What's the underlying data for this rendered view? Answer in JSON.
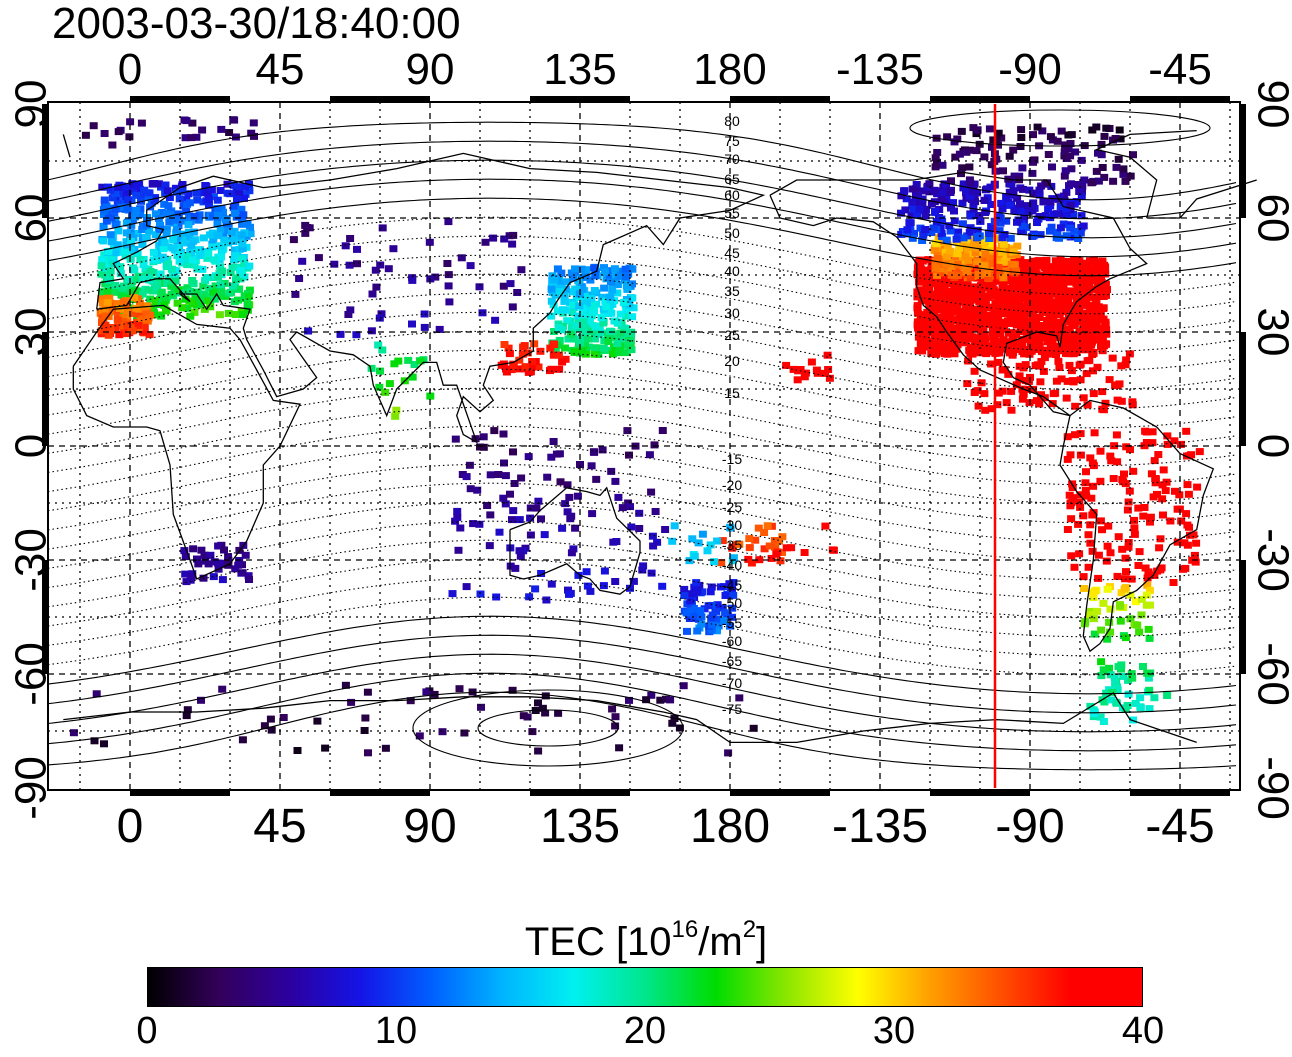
{
  "timestamp": "2003-03-30/18:40:00",
  "map": {
    "projection": "cylindrical",
    "lon_top_labels": [
      "0",
      "45",
      "90",
      "135",
      "180",
      "-135",
      "-90",
      "-45"
    ],
    "lon_bottom_labels": [
      "0",
      "45",
      "90",
      "135",
      "180",
      "-135",
      "-90",
      "-45"
    ],
    "lat_left_labels": [
      "90",
      "60",
      "30",
      "0",
      "-30",
      "-60",
      "-90"
    ],
    "lat_right_labels": [
      "90",
      "60",
      "30",
      "0",
      "-30",
      "-60",
      "-90"
    ],
    "terminator_longitude": -100,
    "terminator_color": "#ff0000",
    "contour_labels_north": [
      "80",
      "75",
      "70",
      "65",
      "60",
      "55",
      "50",
      "45",
      "40",
      "35",
      "30",
      "25",
      "20",
      "15"
    ],
    "contour_labels_south": [
      "-15",
      "-20",
      "-25",
      "-30",
      "-35",
      "-40",
      "-45",
      "-50",
      "-55",
      "-60",
      "-65",
      "-70",
      "-75"
    ]
  },
  "colorbar": {
    "title_main": "TEC  [10",
    "title_sup1": "16",
    "title_mid": "/m",
    "title_sup2": "2",
    "title_end": "]",
    "min": 0,
    "max": 40,
    "tick_labels": [
      "0",
      "10",
      "20",
      "30",
      "40"
    ],
    "colormap": [
      "#000000",
      "#33005a",
      "#2c00a0",
      "#1414e6",
      "#0060ff",
      "#00b4ff",
      "#00f0f0",
      "#00e68c",
      "#00dc00",
      "#8ce600",
      "#ffff00",
      "#ffa000",
      "#ff5000",
      "#ff0000",
      "#ff0000"
    ]
  }
}
